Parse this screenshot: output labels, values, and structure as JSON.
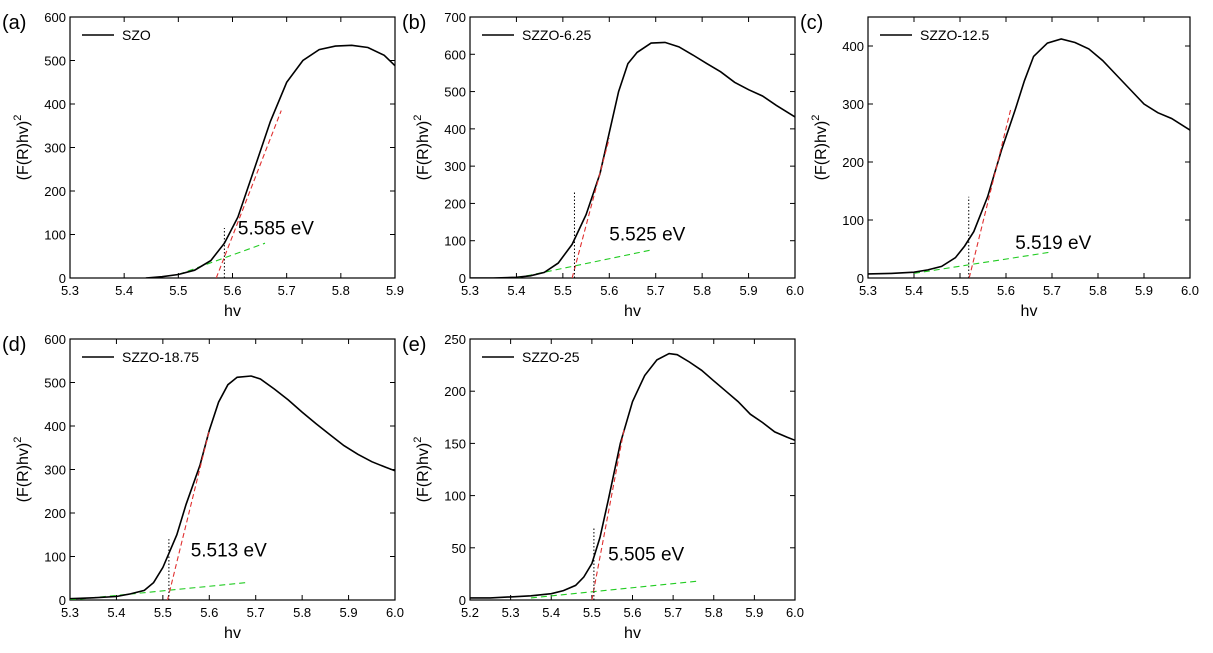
{
  "chart_data": [
    {
      "type": "line",
      "panel_label": "(a)",
      "legend": "SZO",
      "xlabel": "hv",
      "ylabel": "(F(R)hv)",
      "ylabel_sup": "2",
      "xlim": [
        5.3,
        5.9
      ],
      "ylim": [
        0,
        600
      ],
      "xticks": [
        5.3,
        5.4,
        5.5,
        5.6,
        5.7,
        5.8,
        5.9
      ],
      "xtick_labels": [
        "5.3",
        "5.4",
        "5.5",
        "5.6",
        "5.7",
        "5.8",
        "5.9"
      ],
      "yticks": [
        0,
        100,
        200,
        300,
        400,
        500,
        600
      ],
      "ytick_labels": [
        "0",
        "100",
        "200",
        "300",
        "400",
        "500",
        "600"
      ],
      "series": [
        {
          "name": "SZO",
          "x": [
            5.44,
            5.47,
            5.5,
            5.53,
            5.56,
            5.585,
            5.61,
            5.64,
            5.67,
            5.7,
            5.73,
            5.76,
            5.79,
            5.82,
            5.85,
            5.88,
            5.9
          ],
          "y": [
            0,
            3,
            8,
            18,
            40,
            80,
            140,
            250,
            360,
            450,
            500,
            525,
            533,
            535,
            530,
            512,
            488
          ]
        }
      ],
      "fit_line": {
        "x": [
          5.57,
          5.69
        ],
        "y": [
          0,
          385
        ]
      },
      "baseline_fit": {
        "x": [
          5.5,
          5.66
        ],
        "y": [
          8,
          80
        ]
      },
      "marker_x": 5.585,
      "marker_y_top": 115,
      "annotation": "5.585 eV",
      "annotation_pos": {
        "x": 5.61,
        "y": 100
      }
    },
    {
      "type": "line",
      "panel_label": "(b)",
      "legend": "SZZO-6.25",
      "xlabel": "hv",
      "ylabel": "(F(R)hv)",
      "ylabel_sup": "2",
      "xlim": [
        5.3,
        6.0
      ],
      "ylim": [
        0,
        700
      ],
      "xticks": [
        5.3,
        5.4,
        5.5,
        5.6,
        5.7,
        5.8,
        5.9,
        6.0
      ],
      "xtick_labels": [
        "5.3",
        "5.4",
        "5.5",
        "5.6",
        "5.7",
        "5.8",
        "5.9",
        "6.0"
      ],
      "yticks": [
        0,
        100,
        200,
        300,
        400,
        500,
        600,
        700
      ],
      "ytick_labels": [
        "0",
        "100",
        "200",
        "300",
        "400",
        "500",
        "600",
        "700"
      ],
      "series": [
        {
          "name": "SZZO-6.25",
          "x": [
            5.3,
            5.35,
            5.4,
            5.43,
            5.46,
            5.49,
            5.52,
            5.55,
            5.58,
            5.6,
            5.62,
            5.64,
            5.66,
            5.69,
            5.72,
            5.75,
            5.78,
            5.81,
            5.84,
            5.87,
            5.9,
            5.93,
            5.96,
            6.0
          ],
          "y": [
            0,
            0,
            2,
            6,
            15,
            40,
            90,
            170,
            280,
            390,
            500,
            575,
            605,
            630,
            632,
            620,
            598,
            575,
            553,
            525,
            505,
            488,
            463,
            432
          ]
        }
      ],
      "fit_line": {
        "x": [
          5.52,
          5.6
        ],
        "y": [
          0,
          375
        ]
      },
      "baseline_fit": {
        "x": [
          5.4,
          5.69
        ],
        "y": [
          0,
          75
        ]
      },
      "marker_x": 5.525,
      "marker_y_top": 230,
      "annotation": "5.525 eV",
      "annotation_pos": {
        "x": 5.6,
        "y": 100
      }
    },
    {
      "type": "line",
      "panel_label": "(c)",
      "legend": "SZZO-12.5",
      "xlabel": "hv",
      "ylabel": "(F(R)hv)",
      "ylabel_sup": "2",
      "xlim": [
        5.3,
        6.0
      ],
      "ylim": [
        0,
        450
      ],
      "xticks": [
        5.3,
        5.4,
        5.5,
        5.6,
        5.7,
        5.8,
        5.9,
        6.0
      ],
      "xtick_labels": [
        "5.3",
        "5.4",
        "5.5",
        "5.6",
        "5.7",
        "5.8",
        "5.9",
        "6.0"
      ],
      "yticks": [
        0,
        100,
        200,
        300,
        400
      ],
      "ytick_labels": [
        "0",
        "100",
        "200",
        "300",
        "400"
      ],
      "series": [
        {
          "name": "SZZO-12.5",
          "x": [
            5.3,
            5.35,
            5.4,
            5.43,
            5.46,
            5.49,
            5.51,
            5.53,
            5.56,
            5.59,
            5.62,
            5.64,
            5.66,
            5.69,
            5.72,
            5.75,
            5.78,
            5.81,
            5.84,
            5.87,
            5.9,
            5.93,
            5.96,
            6.0
          ],
          "y": [
            7,
            8,
            10,
            14,
            20,
            35,
            55,
            80,
            140,
            220,
            290,
            340,
            382,
            405,
            412,
            406,
            395,
            375,
            350,
            325,
            300,
            285,
            275,
            255
          ]
        }
      ],
      "fit_line": {
        "x": [
          5.52,
          5.61
        ],
        "y": [
          0,
          290
        ]
      },
      "baseline_fit": {
        "x": [
          5.4,
          5.7
        ],
        "y": [
          8,
          45
        ]
      },
      "marker_x": 5.519,
      "marker_y_top": 140,
      "annotation": "5.519 eV",
      "annotation_pos": {
        "x": 5.62,
        "y": 50
      }
    },
    {
      "type": "line",
      "panel_label": "(d)",
      "legend": "SZZO-18.75",
      "xlabel": "hv",
      "ylabel": "(F(R)hv)",
      "ylabel_sup": "2",
      "xlim": [
        5.3,
        6.0
      ],
      "ylim": [
        0,
        600
      ],
      "xticks": [
        5.3,
        5.4,
        5.5,
        5.6,
        5.7,
        5.8,
        5.9,
        6.0
      ],
      "xtick_labels": [
        "5.3",
        "5.4",
        "5.5",
        "5.6",
        "5.7",
        "5.8",
        "5.9",
        "6.0"
      ],
      "yticks": [
        0,
        100,
        200,
        300,
        400,
        500,
        600
      ],
      "ytick_labels": [
        "0",
        "100",
        "200",
        "300",
        "400",
        "500",
        "600"
      ],
      "series": [
        {
          "name": "SZZO-18.75",
          "x": [
            5.3,
            5.35,
            5.4,
            5.43,
            5.46,
            5.48,
            5.5,
            5.53,
            5.55,
            5.58,
            5.6,
            5.62,
            5.64,
            5.66,
            5.69,
            5.71,
            5.74,
            5.77,
            5.8,
            5.83,
            5.86,
            5.89,
            5.92,
            5.95,
            5.98,
            6.0
          ],
          "y": [
            3,
            5,
            8,
            14,
            22,
            40,
            75,
            150,
            220,
            310,
            390,
            455,
            495,
            512,
            515,
            508,
            485,
            460,
            432,
            405,
            380,
            355,
            335,
            318,
            305,
            297
          ]
        }
      ],
      "fit_line": {
        "x": [
          5.51,
          5.6
        ],
        "y": [
          0,
          390
        ]
      },
      "baseline_fit": {
        "x": [
          5.3,
          5.68
        ],
        "y": [
          0,
          40
        ]
      },
      "marker_x": 5.513,
      "marker_y_top": 140,
      "annotation": "5.513 eV",
      "annotation_pos": {
        "x": 5.56,
        "y": 100
      }
    },
    {
      "type": "line",
      "panel_label": "(e)",
      "legend": "SZZO-25",
      "xlabel": "hv",
      "ylabel": "(F(R)hv)",
      "ylabel_sup": "2",
      "xlim": [
        5.2,
        6.0
      ],
      "ylim": [
        0,
        250
      ],
      "xticks": [
        5.2,
        5.3,
        5.4,
        5.5,
        5.6,
        5.7,
        5.8,
        5.9,
        6.0
      ],
      "xtick_labels": [
        "5.2",
        "5.3",
        "5.4",
        "5.5",
        "5.6",
        "5.7",
        "5.8",
        "5.9",
        "6.0"
      ],
      "yticks": [
        0,
        50,
        100,
        150,
        200,
        250
      ],
      "ytick_labels": [
        "0",
        "50",
        "100",
        "150",
        "200",
        "250"
      ],
      "series": [
        {
          "name": "SZZO-25",
          "x": [
            5.2,
            5.25,
            5.3,
            5.35,
            5.4,
            5.43,
            5.46,
            5.48,
            5.5,
            5.52,
            5.54,
            5.57,
            5.6,
            5.63,
            5.66,
            5.69,
            5.71,
            5.74,
            5.77,
            5.8,
            5.83,
            5.86,
            5.89,
            5.92,
            5.95,
            5.98,
            6.0
          ],
          "y": [
            2,
            2,
            3,
            4,
            6,
            9,
            14,
            22,
            35,
            60,
            95,
            150,
            190,
            215,
            230,
            236,
            235,
            228,
            220,
            210,
            200,
            190,
            178,
            170,
            161,
            156,
            153
          ]
        }
      ],
      "fit_line": {
        "x": [
          5.5,
          5.58
        ],
        "y": [
          0,
          165
        ]
      },
      "baseline_fit": {
        "x": [
          5.35,
          5.76
        ],
        "y": [
          2,
          18
        ]
      },
      "marker_x": 5.505,
      "marker_y_top": 70,
      "annotation": "5.505 eV",
      "annotation_pos": {
        "x": 5.54,
        "y": 38
      }
    }
  ]
}
